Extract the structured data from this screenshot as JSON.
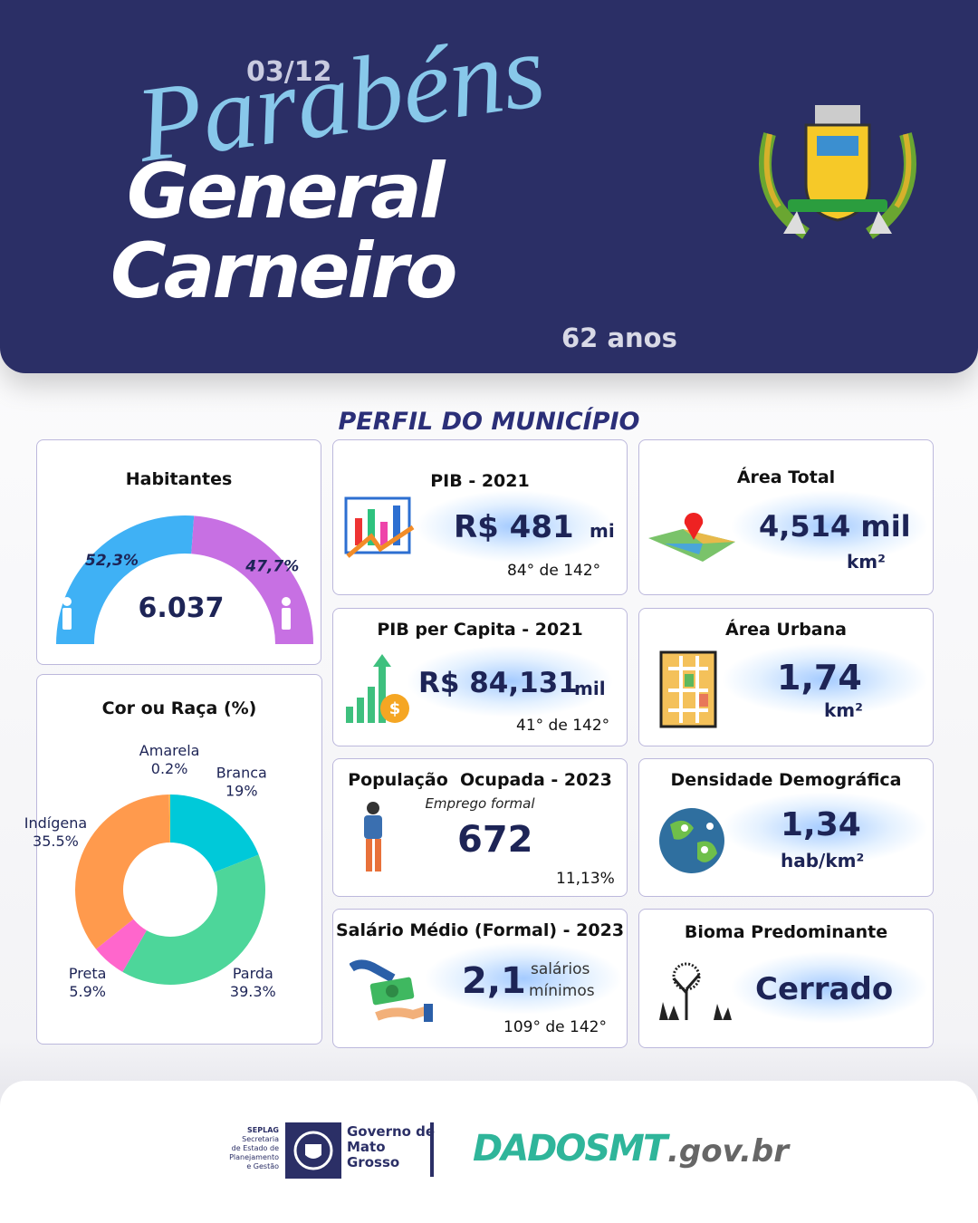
{
  "header": {
    "date": "03/12",
    "greeting": "Parabéns",
    "city_lines": [
      "General",
      "Carneiro"
    ],
    "age": "62 anos"
  },
  "section_title": "PERFIL DO MUNICÍPIO",
  "chart_data": [
    {
      "type": "gauge",
      "title": "Habitantes",
      "values": [
        52.3,
        47.7
      ],
      "value_labels": [
        "52,3%",
        "47,7%"
      ],
      "colors": [
        "#3fb1f5",
        "#c770e3"
      ],
      "center_label": "6.037"
    },
    {
      "type": "donut",
      "title": "Cor ou Raça (%)",
      "categories": [
        "Branca",
        "Parda",
        "Preta",
        "Indígena",
        "Amarela"
      ],
      "values": [
        19,
        39.3,
        5.9,
        35.5,
        0.2
      ],
      "value_labels": [
        "19%",
        "39.3%",
        "5.9%",
        "35.5%",
        "0.2%"
      ],
      "colors": [
        "#00c9d9",
        "#4dd69a",
        "#ff66cc",
        "#ff9a4d",
        "#ffb84d"
      ]
    }
  ],
  "cards": [
    {
      "title": "PIB - 2021",
      "value": "R$ 481",
      "unit": "mi",
      "rank": "84°  de 142°"
    },
    {
      "title": "Área Total",
      "value": "4,514 mil",
      "unit": "km²"
    },
    {
      "title": "PIB per Capita - 2021",
      "value": "R$ 84,131",
      "unit": "mil",
      "rank": "41° de 142°"
    },
    {
      "title": "Área Urbana",
      "value": "1,74",
      "unit": "km²"
    },
    {
      "title": "População  Ocupada - 2023",
      "subtitle": "Emprego formal",
      "value": "672",
      "rank": "11,13%"
    },
    {
      "title": "Densidade Demográfica",
      "value": "1,34",
      "unit": "hab/km²"
    },
    {
      "title": "Salário Médio (Formal) - 2023",
      "value": "2,1",
      "unit_lines": [
        "salários",
        "mínimos"
      ],
      "rank": "109° de 142°"
    },
    {
      "title": "Bioma Predominante",
      "value": "Cerrado"
    }
  ],
  "footer": {
    "org": "SEPLAG",
    "org_lines": [
      "Secretaria",
      "de Estado de",
      "Planejamento",
      "e Gestão"
    ],
    "gov_lines": [
      "Governo de",
      "Mato",
      "Grosso"
    ],
    "brand": "DADOSMT",
    "domain": ".gov.br"
  }
}
